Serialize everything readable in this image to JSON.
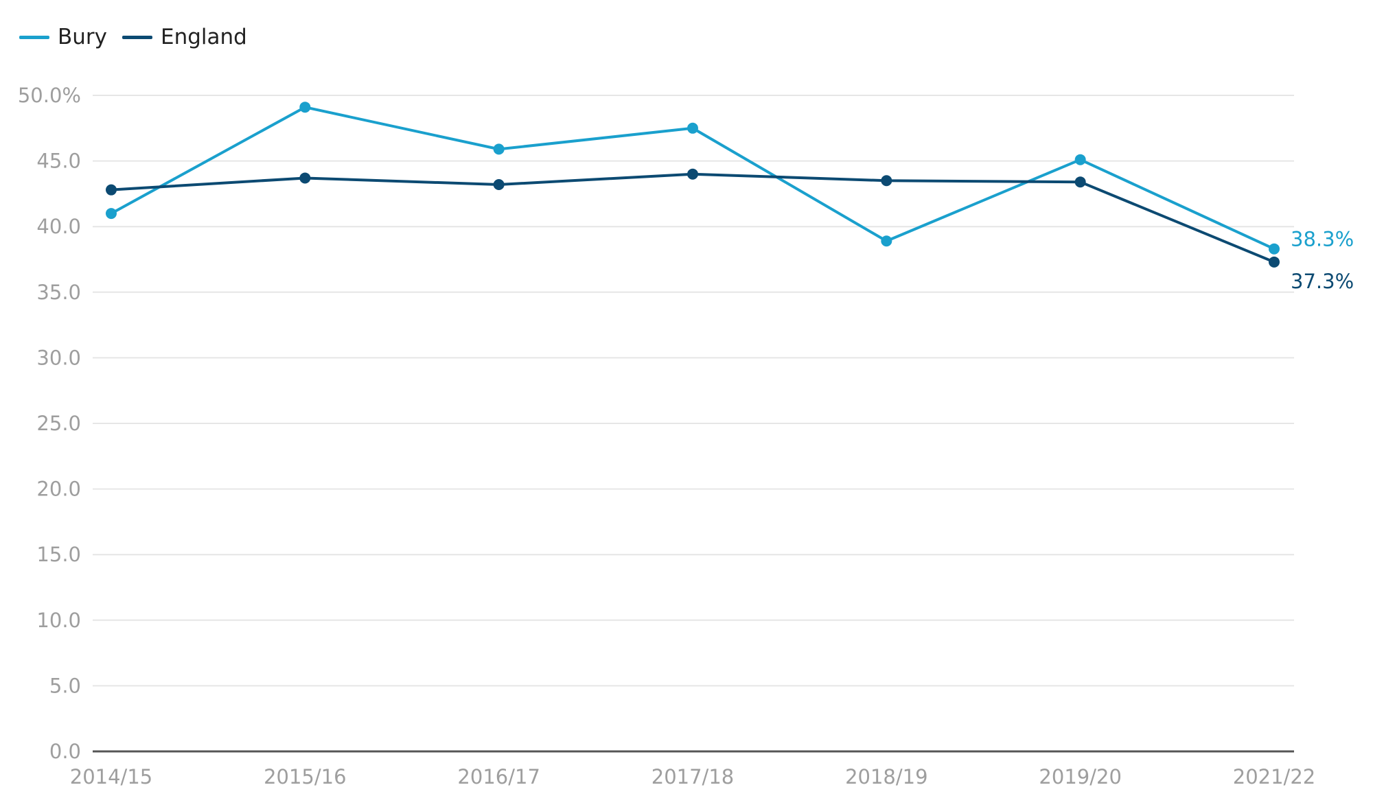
{
  "chart_data": {
    "type": "line",
    "title": "",
    "xlabel": "",
    "ylabel": "",
    "categories": [
      "2014/15",
      "2015/16",
      "2016/17",
      "2017/18",
      "2018/19",
      "2019/20",
      "2021/22"
    ],
    "y_ticks": [
      "0.0",
      "5.0",
      "10.0",
      "15.0",
      "20.0",
      "25.0",
      "30.0",
      "35.0",
      "40.0",
      "45.0",
      "50.0%"
    ],
    "ylim": [
      0,
      50
    ],
    "grid": true,
    "legend_position": "top-left",
    "series": [
      {
        "name": "Bury",
        "color": "#1aa0cd",
        "values": [
          41.0,
          49.1,
          45.9,
          47.5,
          38.9,
          45.1,
          38.3
        ],
        "end_label": "38.3%"
      },
      {
        "name": "England",
        "color": "#0c4a72",
        "values": [
          42.8,
          43.7,
          43.2,
          44.0,
          43.5,
          43.4,
          37.3
        ],
        "end_label": "37.3%"
      }
    ],
    "colors": {
      "grid": "#e6e6e6",
      "axis": "#555555",
      "tick_text": "#9e9e9e"
    }
  }
}
